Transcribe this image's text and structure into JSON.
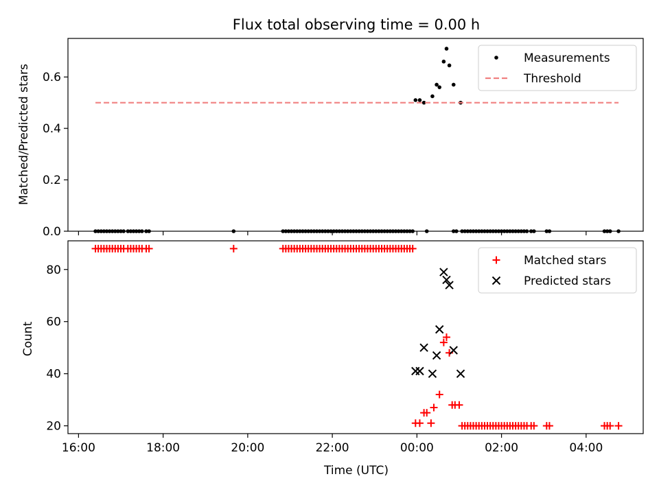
{
  "figure": {
    "title": "Flux total observing time = 0.00 h",
    "xlabel": "Time (UTC)"
  },
  "chart_data": [
    {
      "type": "scatter",
      "ylabel": "Matched/Predicted stars",
      "xlim": [
        "15:45",
        "05:21"
      ],
      "ylim": [
        0,
        0.75
      ],
      "yticks": [
        0.0,
        0.2,
        0.4,
        0.6
      ],
      "ytick_labels": [
        "0.0",
        "0.2",
        "0.4",
        "0.6"
      ],
      "grid": false,
      "legend_position": "top-right",
      "series": [
        {
          "name": "Measurements",
          "marker": "dot",
          "color": "#000000",
          "x": [
            "16:24",
            "16:28",
            "16:32",
            "16:36",
            "16:40",
            "16:44",
            "16:48",
            "16:52",
            "16:56",
            "17:00",
            "17:04",
            "17:10",
            "17:14",
            "17:18",
            "17:22",
            "17:26",
            "17:30",
            "17:36",
            "17:40",
            "19:40",
            "20:50",
            "20:54",
            "20:58",
            "21:02",
            "21:06",
            "21:10",
            "21:14",
            "21:18",
            "21:22",
            "21:26",
            "21:30",
            "21:34",
            "21:38",
            "21:42",
            "21:46",
            "21:50",
            "21:54",
            "21:58",
            "22:02",
            "22:06",
            "22:10",
            "22:14",
            "22:18",
            "22:22",
            "22:26",
            "22:30",
            "22:34",
            "22:38",
            "22:42",
            "22:46",
            "22:50",
            "22:54",
            "22:58",
            "23:02",
            "23:06",
            "23:10",
            "23:14",
            "23:18",
            "23:22",
            "23:26",
            "23:30",
            "23:34",
            "23:38",
            "23:42",
            "23:46",
            "23:50",
            "23:54",
            "00:14",
            "00:52",
            "00:56",
            "01:04",
            "01:08",
            "01:12",
            "01:16",
            "01:20",
            "01:24",
            "01:28",
            "01:32",
            "01:36",
            "01:40",
            "01:44",
            "01:48",
            "01:52",
            "01:56",
            "02:00",
            "02:04",
            "02:08",
            "02:12",
            "02:16",
            "02:20",
            "02:24",
            "02:28",
            "02:32",
            "02:36",
            "02:42",
            "02:46",
            "03:04",
            "03:08",
            "04:26",
            "04:30",
            "04:34",
            "04:46",
            "23:58",
            "00:04",
            "00:10",
            "00:22",
            "00:28",
            "00:32",
            "00:38",
            "00:42",
            "00:46",
            "00:52",
            "01:02"
          ],
          "y": [
            0,
            0,
            0,
            0,
            0,
            0,
            0,
            0,
            0,
            0,
            0,
            0,
            0,
            0,
            0,
            0,
            0,
            0,
            0,
            0,
            0,
            0,
            0,
            0,
            0,
            0,
            0,
            0,
            0,
            0,
            0,
            0,
            0,
            0,
            0,
            0,
            0,
            0,
            0,
            0,
            0,
            0,
            0,
            0,
            0,
            0,
            0,
            0,
            0,
            0,
            0,
            0,
            0,
            0,
            0,
            0,
            0,
            0,
            0,
            0,
            0,
            0,
            0,
            0,
            0,
            0,
            0,
            0,
            0,
            0,
            0,
            0,
            0,
            0,
            0,
            0,
            0,
            0,
            0,
            0,
            0,
            0,
            0,
            0,
            0,
            0,
            0,
            0,
            0,
            0,
            0,
            0,
            0,
            0,
            0,
            0,
            0,
            0,
            0,
            0,
            0,
            0,
            0.51,
            0.51,
            0.5,
            0.525,
            0.57,
            0.56,
            0.66,
            0.71,
            0.645,
            0.57,
            0.5
          ]
        },
        {
          "name": "Threshold",
          "style": "dashed",
          "color": "#f08080",
          "x": [
            "16:24",
            "04:46"
          ],
          "y": [
            0.5,
            0.5
          ]
        }
      ]
    },
    {
      "type": "scatter",
      "ylabel": "Count",
      "xlim": [
        "15:45",
        "05:21"
      ],
      "ylim": [
        17,
        91
      ],
      "yticks": [
        20,
        40,
        60,
        80
      ],
      "ytick_labels": [
        "20",
        "40",
        "60",
        "80"
      ],
      "xticks": [
        "16:00",
        "18:00",
        "20:00",
        "22:00",
        "00:00",
        "02:00",
        "04:00"
      ],
      "grid": false,
      "legend_position": "top-right",
      "series": [
        {
          "name": "Matched stars",
          "marker": "plus",
          "color": "#ff0000",
          "x": [
            "16:24",
            "16:28",
            "16:32",
            "16:36",
            "16:40",
            "16:44",
            "16:48",
            "16:52",
            "16:56",
            "17:00",
            "17:04",
            "17:10",
            "17:14",
            "17:18",
            "17:22",
            "17:26",
            "17:30",
            "17:36",
            "17:40",
            "19:40",
            "20:50",
            "20:54",
            "20:58",
            "21:02",
            "21:06",
            "21:10",
            "21:14",
            "21:18",
            "21:22",
            "21:26",
            "21:30",
            "21:34",
            "21:38",
            "21:42",
            "21:46",
            "21:50",
            "21:54",
            "21:58",
            "22:02",
            "22:06",
            "22:10",
            "22:14",
            "22:18",
            "22:22",
            "22:26",
            "22:30",
            "22:34",
            "22:38",
            "22:42",
            "22:46",
            "22:50",
            "22:54",
            "22:58",
            "23:02",
            "23:06",
            "23:10",
            "23:14",
            "23:18",
            "23:22",
            "23:26",
            "23:30",
            "23:34",
            "23:38",
            "23:42",
            "23:46",
            "23:50",
            "23:54",
            "23:58",
            "00:04",
            "00:10",
            "00:14",
            "00:20",
            "00:24",
            "00:32",
            "00:38",
            "00:42",
            "00:46",
            "00:50",
            "00:54",
            "01:00",
            "01:04",
            "01:08",
            "01:12",
            "01:16",
            "01:20",
            "01:24",
            "01:28",
            "01:32",
            "01:36",
            "01:40",
            "01:44",
            "01:48",
            "01:52",
            "01:56",
            "02:00",
            "02:04",
            "02:08",
            "02:12",
            "02:16",
            "02:20",
            "02:24",
            "02:28",
            "02:32",
            "02:36",
            "02:42",
            "02:46",
            "03:04",
            "03:08",
            "04:26",
            "04:30",
            "04:34",
            "04:46"
          ],
          "y": [
            88,
            88,
            88,
            88,
            88,
            88,
            88,
            88,
            88,
            88,
            88,
            88,
            88,
            88,
            88,
            88,
            88,
            88,
            88,
            88,
            88,
            88,
            88,
            88,
            88,
            88,
            88,
            88,
            88,
            88,
            88,
            88,
            88,
            88,
            88,
            88,
            88,
            88,
            88,
            88,
            88,
            88,
            88,
            88,
            88,
            88,
            88,
            88,
            88,
            88,
            88,
            88,
            88,
            88,
            88,
            88,
            88,
            88,
            88,
            88,
            88,
            88,
            88,
            88,
            88,
            88,
            88,
            21,
            21,
            25,
            25,
            21,
            27,
            32,
            52,
            54,
            48,
            28,
            28,
            28,
            20,
            20,
            20,
            20,
            20,
            20,
            20,
            20,
            20,
            20,
            20,
            20,
            20,
            20,
            20,
            20,
            20,
            20,
            20,
            20,
            20,
            20,
            20,
            20,
            20,
            20,
            20,
            20,
            20,
            20,
            20,
            20
          ]
        },
        {
          "name": "Predicted stars",
          "marker": "x",
          "color": "#000000",
          "x": [
            "23:58",
            "00:04",
            "00:10",
            "00:22",
            "00:28",
            "00:32",
            "00:38",
            "00:42",
            "00:46",
            "00:52",
            "01:02"
          ],
          "y": [
            41,
            41,
            50,
            40,
            47,
            57,
            79,
            76,
            74,
            49,
            40
          ]
        }
      ]
    }
  ]
}
